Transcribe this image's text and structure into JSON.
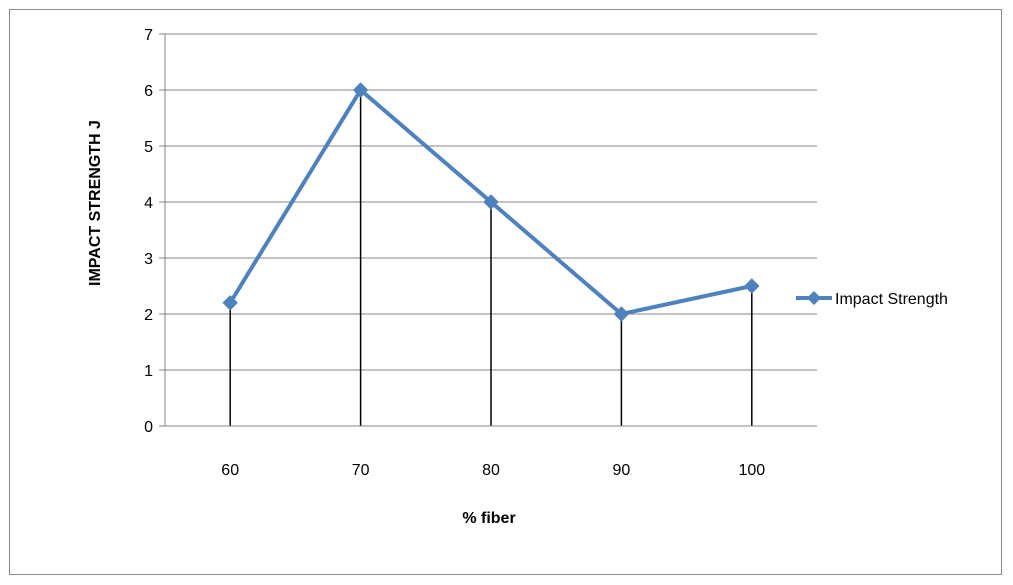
{
  "chart_data": {
    "type": "line",
    "title": "",
    "xlabel": "% fiber",
    "ylabel": "IMPACT STRENGTH J",
    "categories": [
      "60",
      "70",
      "80",
      "90",
      "100"
    ],
    "series": [
      {
        "name": "Impact Strength",
        "values": [
          2.2,
          6,
          4,
          2,
          2.5
        ]
      }
    ],
    "ylim": [
      0,
      7
    ],
    "yticks": [
      "0",
      "1",
      "2",
      "3",
      "4",
      "5",
      "6",
      "7"
    ],
    "grid": true,
    "drop_lines": true,
    "legend_position": "right",
    "colors": {
      "series": "#4f81bd",
      "grid": "#868686",
      "drop_line": "#000000",
      "border": "#8c8c8c"
    }
  }
}
